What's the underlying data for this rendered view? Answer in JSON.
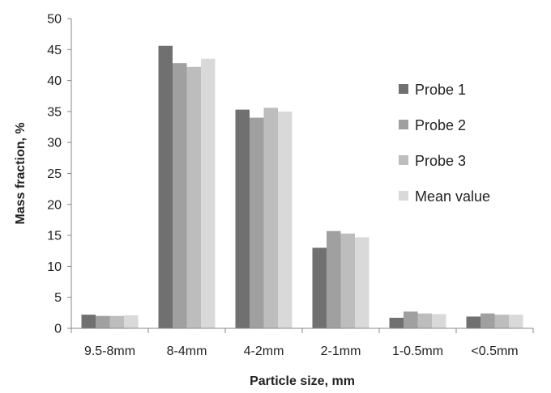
{
  "chart_data": {
    "type": "bar",
    "title": "",
    "xlabel": "Particle size, mm",
    "ylabel": "Mass fraction, %",
    "ylim": [
      0,
      50
    ],
    "yticks": [
      0,
      5,
      10,
      15,
      20,
      25,
      30,
      35,
      40,
      45,
      50
    ],
    "grid": false,
    "legend_position": "right",
    "categories": [
      "9.5-8mm",
      "8-4mm",
      "4-2mm",
      "2-1mm",
      "1-0.5mm",
      "<0.5mm"
    ],
    "series": [
      {
        "name": "Probe 1",
        "color": "#707070",
        "values": [
          2.2,
          45.6,
          35.3,
          13.0,
          1.7,
          1.9
        ]
      },
      {
        "name": "Probe 2",
        "color": "#a0a0a0",
        "values": [
          2.0,
          42.8,
          34.0,
          15.7,
          2.7,
          2.4
        ]
      },
      {
        "name": "Probe 3",
        "color": "#bdbdbd",
        "values": [
          2.0,
          42.2,
          35.6,
          15.3,
          2.4,
          2.2
        ]
      },
      {
        "name": "Mean value",
        "color": "#d9d9d9",
        "values": [
          2.1,
          43.5,
          35.0,
          14.7,
          2.3,
          2.2
        ]
      }
    ]
  }
}
